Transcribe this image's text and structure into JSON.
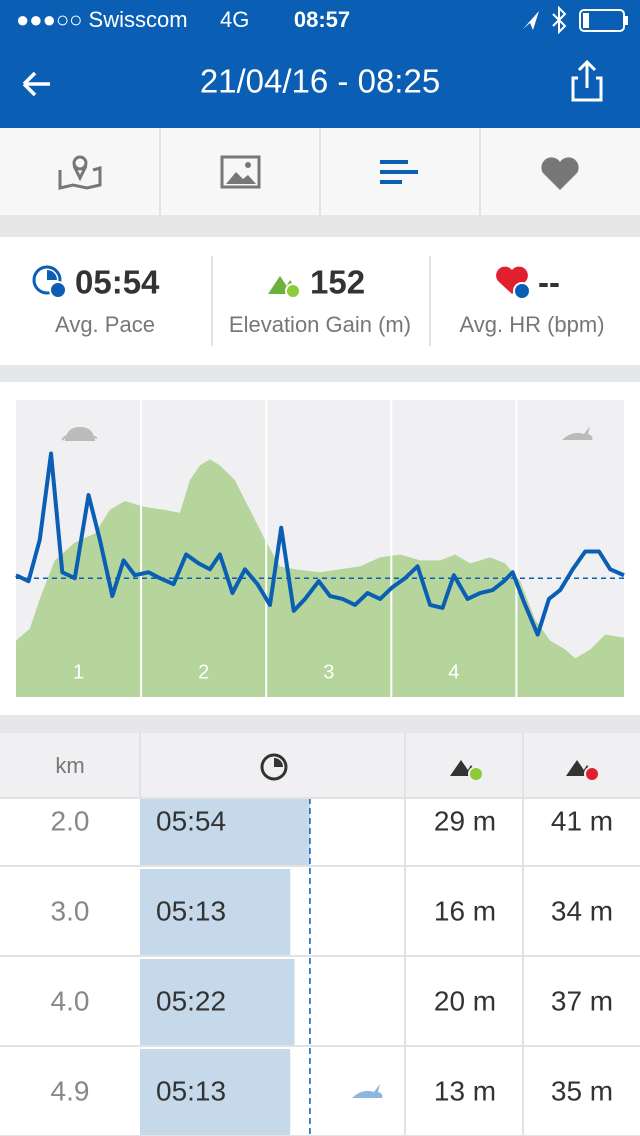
{
  "status_bar": {
    "carrier": "●●●○○ Swisscom",
    "network": "4G",
    "time": "08:57"
  },
  "nav": {
    "title": "21/04/16 - 08:25"
  },
  "stats": [
    {
      "value": "05:54",
      "label": "Avg. Pace"
    },
    {
      "value": "152",
      "label": "Elevation Gain (m)"
    },
    {
      "value": "--",
      "label": "Avg. HR (bpm)"
    }
  ],
  "pace_chart": {
    "type": "line",
    "xlim": [
      0,
      4.86
    ],
    "ylim": [
      0,
      100
    ],
    "segments": [
      "1",
      "2",
      "3",
      "4"
    ],
    "segment_bounds": [
      1,
      2,
      3,
      4
    ],
    "average": 40,
    "pace": {
      "color": "#0a5fb4",
      "x": [
        0,
        0.1,
        0.19,
        0.28,
        0.37,
        0.47,
        0.58,
        0.67,
        0.77,
        0.86,
        0.95,
        1.06,
        1.15,
        1.26,
        1.36,
        1.46,
        1.55,
        1.63,
        1.73,
        1.83,
        1.93,
        2.03,
        2.12,
        2.22,
        2.31,
        2.42,
        2.51,
        2.61,
        2.71,
        2.81,
        2.91,
        3.01,
        3.11,
        3.21,
        3.31,
        3.41,
        3.5,
        3.61,
        3.71,
        3.81,
        3.9,
        3.97,
        4.06,
        4.17,
        4.26,
        4.35,
        4.45,
        4.55,
        4.66,
        4.75,
        4.86
      ],
      "values": [
        41,
        39,
        53,
        82,
        42,
        40,
        68,
        53,
        34,
        46,
        41,
        42,
        40,
        38,
        48,
        45,
        43,
        48,
        35,
        43,
        38,
        31,
        57,
        29,
        33,
        39,
        34,
        33,
        31,
        35,
        33,
        37,
        40,
        44,
        31,
        30,
        41,
        33,
        35,
        36,
        39,
        42,
        32,
        21,
        33,
        36,
        43,
        49,
        49,
        43,
        41
      ]
    },
    "elevation": {
      "color": "#b5d59c",
      "x": [
        0,
        0.11,
        0.19,
        0.31,
        0.47,
        0.63,
        0.75,
        0.87,
        1.03,
        1.19,
        1.31,
        1.39,
        1.47,
        1.55,
        1.63,
        1.75,
        1.87,
        1.99,
        2.11,
        2.23,
        2.43,
        2.59,
        2.75,
        2.91,
        3.07,
        3.23,
        3.39,
        3.51,
        3.63,
        3.79,
        3.91,
        4.03,
        4.15,
        4.27,
        4.39,
        4.47,
        4.59,
        4.71,
        4.86
      ],
      "values": [
        19,
        23,
        33,
        46,
        52,
        55,
        63,
        66,
        64,
        63,
        62,
        73,
        78,
        80,
        78,
        73,
        63,
        53,
        44,
        43,
        42,
        43,
        44,
        47,
        48,
        46,
        46,
        48,
        45,
        47,
        45,
        39,
        26,
        19,
        16,
        13,
        16,
        21,
        20
      ]
    }
  },
  "table": {
    "header": [
      "km"
    ],
    "rows": [
      [
        "2.0",
        "05:54",
        "29 m",
        "41 m"
      ],
      [
        "3.0",
        "05:13",
        "16 m",
        "34 m"
      ],
      [
        "4.0",
        "05:22",
        "20 m",
        "37 m"
      ],
      [
        "4.9",
        "05:13",
        "13 m",
        "35 m"
      ]
    ]
  }
}
